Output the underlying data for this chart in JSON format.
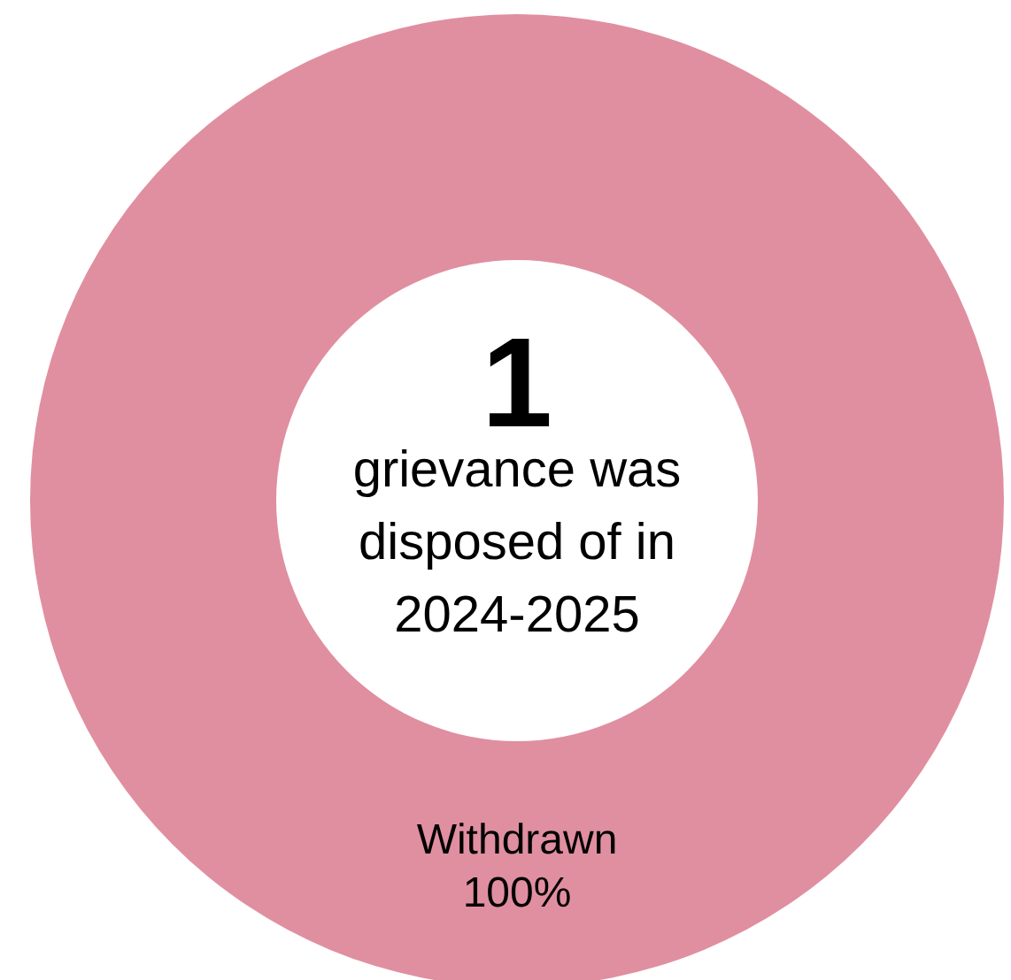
{
  "chart_data": {
    "type": "donut",
    "categories": [
      "Withdrawn"
    ],
    "values": [
      100
    ],
    "colors": [
      "#e08fa0"
    ],
    "value_labels": [
      "100%"
    ],
    "annotations": [
      "1",
      "grievance was\ndisposed of in\n2024-2025"
    ]
  }
}
